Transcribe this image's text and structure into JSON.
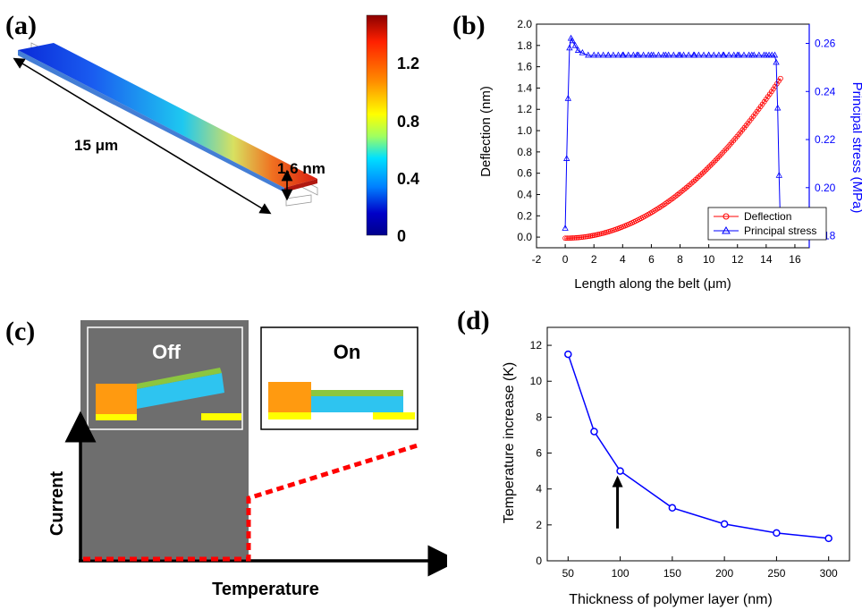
{
  "panels": {
    "a": "(a)",
    "b": "(b)",
    "c": "(c)",
    "d": "(d)"
  },
  "panel_a": {
    "length_label": "15 μm",
    "deflection_label": "1.6 nm",
    "colorbar_ticks": [
      "1.2",
      "0.8",
      "0.4",
      "0"
    ],
    "colorbar_colors": [
      "#8b0000",
      "#ff2000",
      "#ff8c00",
      "#ffff00",
      "#a0ff60",
      "#00e0ff",
      "#0080ff",
      "#0000c8",
      "#00008b"
    ]
  },
  "panel_c": {
    "off_label": "Off",
    "on_label": "On",
    "xlabel": "Temperature",
    "ylabel": "Current",
    "colors": {
      "off_region": "#6e6e6e",
      "anchor": "#ff9a10",
      "electrode": "#ffff00",
      "beam_bottom": "#2ec4f0",
      "beam_top": "#8cc63f",
      "current_line": "#ff0000"
    }
  },
  "chart_data": [
    {
      "panel": "b",
      "type": "line",
      "xlabel": "Length along the belt (μm)",
      "ylabel": "Deflection (nm)",
      "y2label": "Principal stress (MPa)",
      "xlim": [
        -2,
        17
      ],
      "ylim": [
        -0.1,
        2.0
      ],
      "y2lim": [
        0.175,
        0.268
      ],
      "xticks": [
        -2,
        0,
        2,
        4,
        6,
        8,
        10,
        12,
        14,
        16
      ],
      "yticks": [
        0.0,
        0.2,
        0.4,
        0.6,
        0.8,
        1.0,
        1.2,
        1.4,
        1.6,
        1.8,
        2.0
      ],
      "y2ticks": [
        0.18,
        0.2,
        0.22,
        0.24,
        0.26
      ],
      "legend_position": "bottom-right",
      "series": [
        {
          "name": "Deflection",
          "axis": "left",
          "color": "#ff0000",
          "marker": "circle",
          "x_range": [
            0,
            15
          ],
          "num_points": 120,
          "formula": "1.5*(x/15)^2"
        },
        {
          "name": "Principal stress",
          "axis": "right",
          "color": "#0000ff",
          "marker": "triangle",
          "x": [
            0.0,
            0.1,
            0.2,
            0.3,
            0.4,
            0.5,
            0.7,
            0.9,
            1.2,
            1.6,
            2.0,
            3.0,
            4.0,
            5.0,
            6.0,
            7.0,
            8.0,
            9.0,
            10.0,
            11.0,
            12.0,
            13.0,
            14.0,
            14.4,
            14.6,
            14.7,
            14.8,
            14.9,
            15.0
          ],
          "y": [
            0.183,
            0.212,
            0.237,
            0.258,
            0.262,
            0.261,
            0.259,
            0.257,
            0.256,
            0.255,
            0.255,
            0.255,
            0.255,
            0.255,
            0.255,
            0.255,
            0.255,
            0.255,
            0.255,
            0.255,
            0.255,
            0.255,
            0.255,
            0.255,
            0.255,
            0.252,
            0.233,
            0.205,
            0.182
          ]
        }
      ]
    },
    {
      "panel": "d",
      "type": "line",
      "xlabel": "Thickness of polymer layer (nm)",
      "ylabel": "Temperature increase (K)",
      "xlim": [
        30,
        320
      ],
      "ylim": [
        0,
        13
      ],
      "xticks": [
        50,
        100,
        150,
        200,
        250,
        300
      ],
      "yticks": [
        0,
        2,
        4,
        6,
        8,
        10,
        12
      ],
      "x": [
        50,
        75,
        100,
        150,
        200,
        250,
        300
      ],
      "values": [
        11.5,
        7.2,
        5.0,
        2.95,
        2.05,
        1.55,
        1.25
      ],
      "color": "#0000ff",
      "marker": "circle",
      "arrow_at_x": 100
    }
  ]
}
